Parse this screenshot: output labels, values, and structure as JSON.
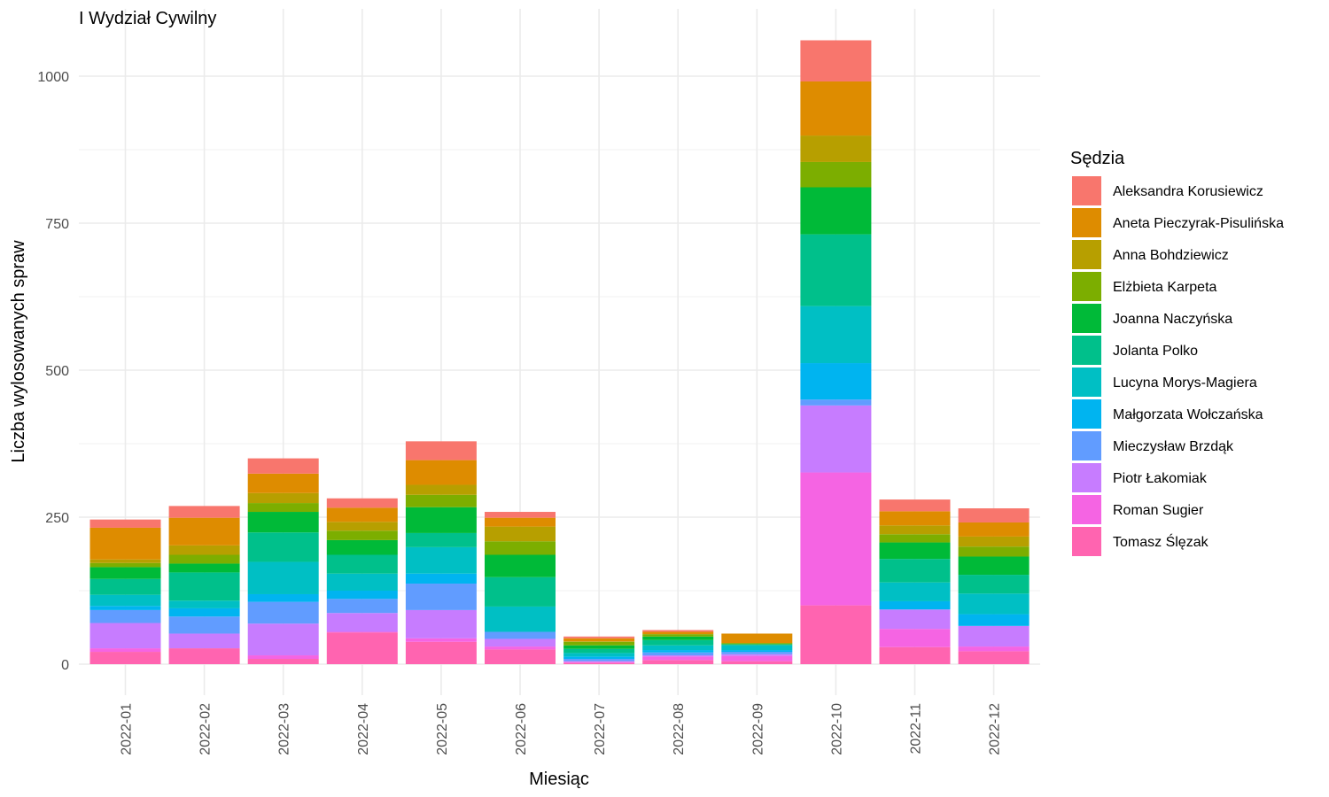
{
  "chart_data": {
    "type": "bar",
    "stacked": true,
    "title": "I Wydział Cywilny",
    "xlabel": "Miesiąc",
    "ylabel": "Liczba wylosowanych spraw",
    "ylim": [
      -38,
      1097
    ],
    "yticks": [
      0,
      250,
      500,
      750,
      1000
    ],
    "grid": true,
    "legend_title": "Sędzia",
    "legend_position": "right",
    "categories": [
      "2022-01",
      "2022-02",
      "2022-03",
      "2022-04",
      "2022-05",
      "2022-06",
      "2022-07",
      "2022-08",
      "2022-09",
      "2022-10",
      "2022-11",
      "2022-12"
    ],
    "series": [
      {
        "name": "Aleksandra Korusiewicz",
        "color": "#F8766D",
        "values": [
          14,
          20,
          26,
          16,
          32,
          10,
          3,
          3,
          0,
          70,
          20,
          24
        ]
      },
      {
        "name": "Aneta Pieczyrak-Pisulińska",
        "color": "#DE8C00",
        "values": [
          54,
          47,
          33,
          24,
          42,
          15,
          5,
          4,
          16,
          92,
          24,
          24
        ]
      },
      {
        "name": "Anna Bohdziewicz",
        "color": "#B79F00",
        "values": [
          6,
          16,
          17,
          15,
          17,
          25,
          1,
          0,
          0,
          45,
          15,
          17
        ]
      },
      {
        "name": "Elżbieta Karpeta",
        "color": "#7CAE00",
        "values": [
          7,
          15,
          15,
          16,
          21,
          23,
          6,
          4,
          2,
          43,
          14,
          17
        ]
      },
      {
        "name": "Joanna Naczyńska",
        "color": "#00BA38",
        "values": [
          20,
          15,
          35,
          25,
          44,
          38,
          6,
          6,
          0,
          80,
          28,
          31
        ]
      },
      {
        "name": "Jolanta Polko",
        "color": "#00C08B",
        "values": [
          27,
          48,
          50,
          32,
          24,
          50,
          7,
          9,
          2,
          122,
          40,
          32
        ]
      },
      {
        "name": "Lucyna Morys-Magiera",
        "color": "#00BFC4",
        "values": [
          19,
          13,
          55,
          29,
          45,
          43,
          6,
          8,
          8,
          97,
          32,
          35
        ]
      },
      {
        "name": "Małgorzata Wołczańska",
        "color": "#00B4F0",
        "values": [
          7,
          14,
          13,
          14,
          17,
          0,
          4,
          4,
          3,
          62,
          14,
          20
        ]
      },
      {
        "name": "Mieczysław Brzdąk",
        "color": "#619CFF",
        "values": [
          22,
          29,
          37,
          24,
          45,
          12,
          4,
          5,
          4,
          10,
          0,
          0
        ]
      },
      {
        "name": "Piotr Łakomiak",
        "color": "#C77CFF",
        "values": [
          43,
          25,
          54,
          32,
          48,
          13,
          1,
          2,
          3,
          114,
          33,
          35
        ]
      },
      {
        "name": "Roman Sugier",
        "color": "#F564E3",
        "values": [
          6,
          0,
          6,
          1,
          6,
          5,
          2,
          6,
          9,
          226,
          31,
          8
        ]
      },
      {
        "name": "Tomasz Ślęzak",
        "color": "#FF64B0",
        "values": [
          21,
          27,
          9,
          54,
          38,
          25,
          2,
          7,
          5,
          100,
          29,
          22
        ]
      }
    ]
  }
}
